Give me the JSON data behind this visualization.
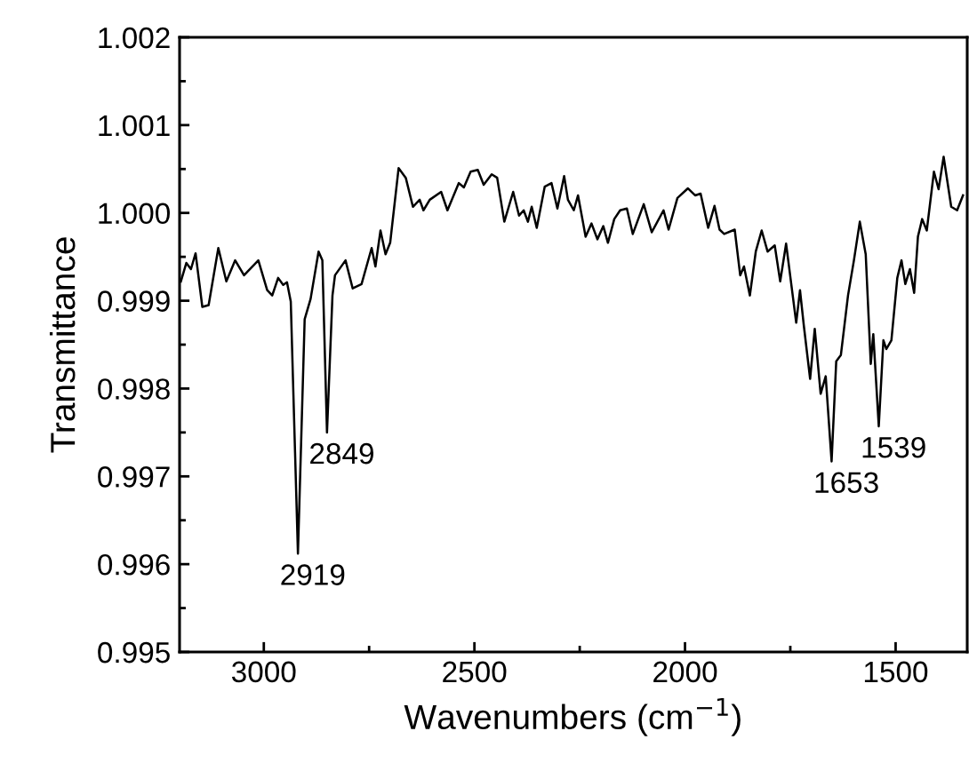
{
  "chart_data": {
    "type": "line",
    "xlabel": "Wavenumbers (cm$^{−1}$)",
    "ylabel": "Transmittance",
    "xlim": [
      3200,
      1330
    ],
    "ylim": [
      0.995,
      1.002
    ],
    "xticks": [
      3000,
      {
        "value": 2750,
        "label": null
      },
      2500,
      {
        "value": 2250,
        "label": null
      },
      2000,
      {
        "value": 1750,
        "label": null
      },
      1500
    ],
    "yticks": [
      0.995,
      {
        "value": 0.9955,
        "label": null
      },
      0.996,
      {
        "value": 0.9965,
        "label": null
      },
      0.997,
      {
        "value": 0.9975,
        "label": null
      },
      0.998,
      {
        "value": 0.9985,
        "label": null
      },
      0.999,
      {
        "value": 0.9995,
        "label": null
      },
      {
        "value": 1.0,
        "label": "1.000"
      },
      {
        "value": 1.0005,
        "label": null
      },
      1.001,
      {
        "value": 1.0015,
        "label": null
      },
      1.002
    ],
    "grid": false,
    "legend": false,
    "marker": "none",
    "line_style": "solid",
    "series": [
      {
        "color": "#000000",
        "x": [
          3197,
          3184,
          3173,
          3162,
          3146,
          3131,
          3108,
          3089,
          3068,
          3047,
          3013,
          2992,
          2980,
          2966,
          2954,
          2945,
          2936,
          2919,
          2903,
          2889,
          2870,
          2861,
          2850,
          2837,
          2831,
          2806,
          2789,
          2768,
          2744,
          2735,
          2723,
          2711,
          2700,
          2680,
          2663,
          2646,
          2630,
          2621,
          2606,
          2579,
          2564,
          2537,
          2525,
          2509,
          2492,
          2478,
          2459,
          2446,
          2429,
          2408,
          2394,
          2383,
          2373,
          2364,
          2352,
          2333,
          2317,
          2303,
          2287,
          2278,
          2264,
          2254,
          2236,
          2222,
          2208,
          2194,
          2183,
          2168,
          2154,
          2138,
          2124,
          2098,
          2079,
          2051,
          2039,
          2018,
          1993,
          1976,
          1963,
          1945,
          1930,
          1918,
          1907,
          1882,
          1869,
          1860,
          1846,
          1832,
          1818,
          1804,
          1787,
          1774,
          1760,
          1736,
          1727,
          1718,
          1703,
          1692,
          1678,
          1666,
          1652,
          1641,
          1630,
          1613,
          1599,
          1585,
          1571,
          1559,
          1553,
          1540,
          1529,
          1522,
          1510,
          1496,
          1486,
          1477,
          1466,
          1456,
          1447,
          1437,
          1426,
          1409,
          1398,
          1386,
          1368,
          1354,
          1340
        ],
        "values": [
          0.99922,
          0.99943,
          0.99936,
          0.99954,
          0.99893,
          0.99895,
          0.9996,
          0.99922,
          0.99946,
          0.99929,
          0.99946,
          0.99912,
          0.99906,
          0.99926,
          0.99918,
          0.99921,
          0.99899,
          0.99612,
          0.99879,
          0.99902,
          0.99956,
          0.99946,
          0.9975,
          0.99906,
          0.99929,
          0.99946,
          0.99914,
          0.99919,
          0.9996,
          0.99939,
          0.9998,
          0.99953,
          0.99966,
          1.00051,
          1.0004,
          1.00007,
          1.00015,
          1.00003,
          1.00015,
          1.00024,
          1.00003,
          1.00034,
          1.00029,
          1.00047,
          1.00049,
          1.00032,
          1.00044,
          1.0004,
          0.9999,
          1.00024,
          0.99997,
          1.00003,
          0.9999,
          1.00007,
          0.99983,
          1.0003,
          1.00034,
          1.00005,
          1.00042,
          1.00015,
          1.00003,
          1.0002,
          0.99973,
          0.99988,
          0.9997,
          0.99985,
          0.99966,
          0.99993,
          1.00003,
          1.00005,
          0.99976,
          1.0001,
          0.99978,
          1.00003,
          0.99981,
          1.00017,
          1.00028,
          1.0002,
          1.00022,
          0.99983,
          1.00008,
          0.99981,
          0.99976,
          0.99981,
          0.99929,
          0.99939,
          0.99906,
          0.99956,
          0.9998,
          0.99956,
          0.99963,
          0.99922,
          0.99965,
          0.99875,
          0.99912,
          0.99872,
          0.99811,
          0.99868,
          0.99794,
          0.99814,
          0.99717,
          0.99831,
          0.99838,
          0.99906,
          0.99946,
          0.9999,
          0.99953,
          0.99828,
          0.99862,
          0.99757,
          0.99855,
          0.99845,
          0.99855,
          0.99926,
          0.99946,
          0.99919,
          0.99936,
          0.99909,
          0.99973,
          0.99993,
          0.9998,
          1.00047,
          1.00027,
          1.00064,
          1.00007,
          1.00003,
          1.0002
        ]
      }
    ],
    "annotations": [
      {
        "text": "2919",
        "x": 2919,
        "y": 0.99612
      },
      {
        "text": "2849",
        "x": 2850,
        "y": 0.9975
      },
      {
        "text": "1653",
        "x": 1652,
        "y": 0.99717
      },
      {
        "text": "1539",
        "x": 1540,
        "y": 0.99757
      }
    ]
  }
}
